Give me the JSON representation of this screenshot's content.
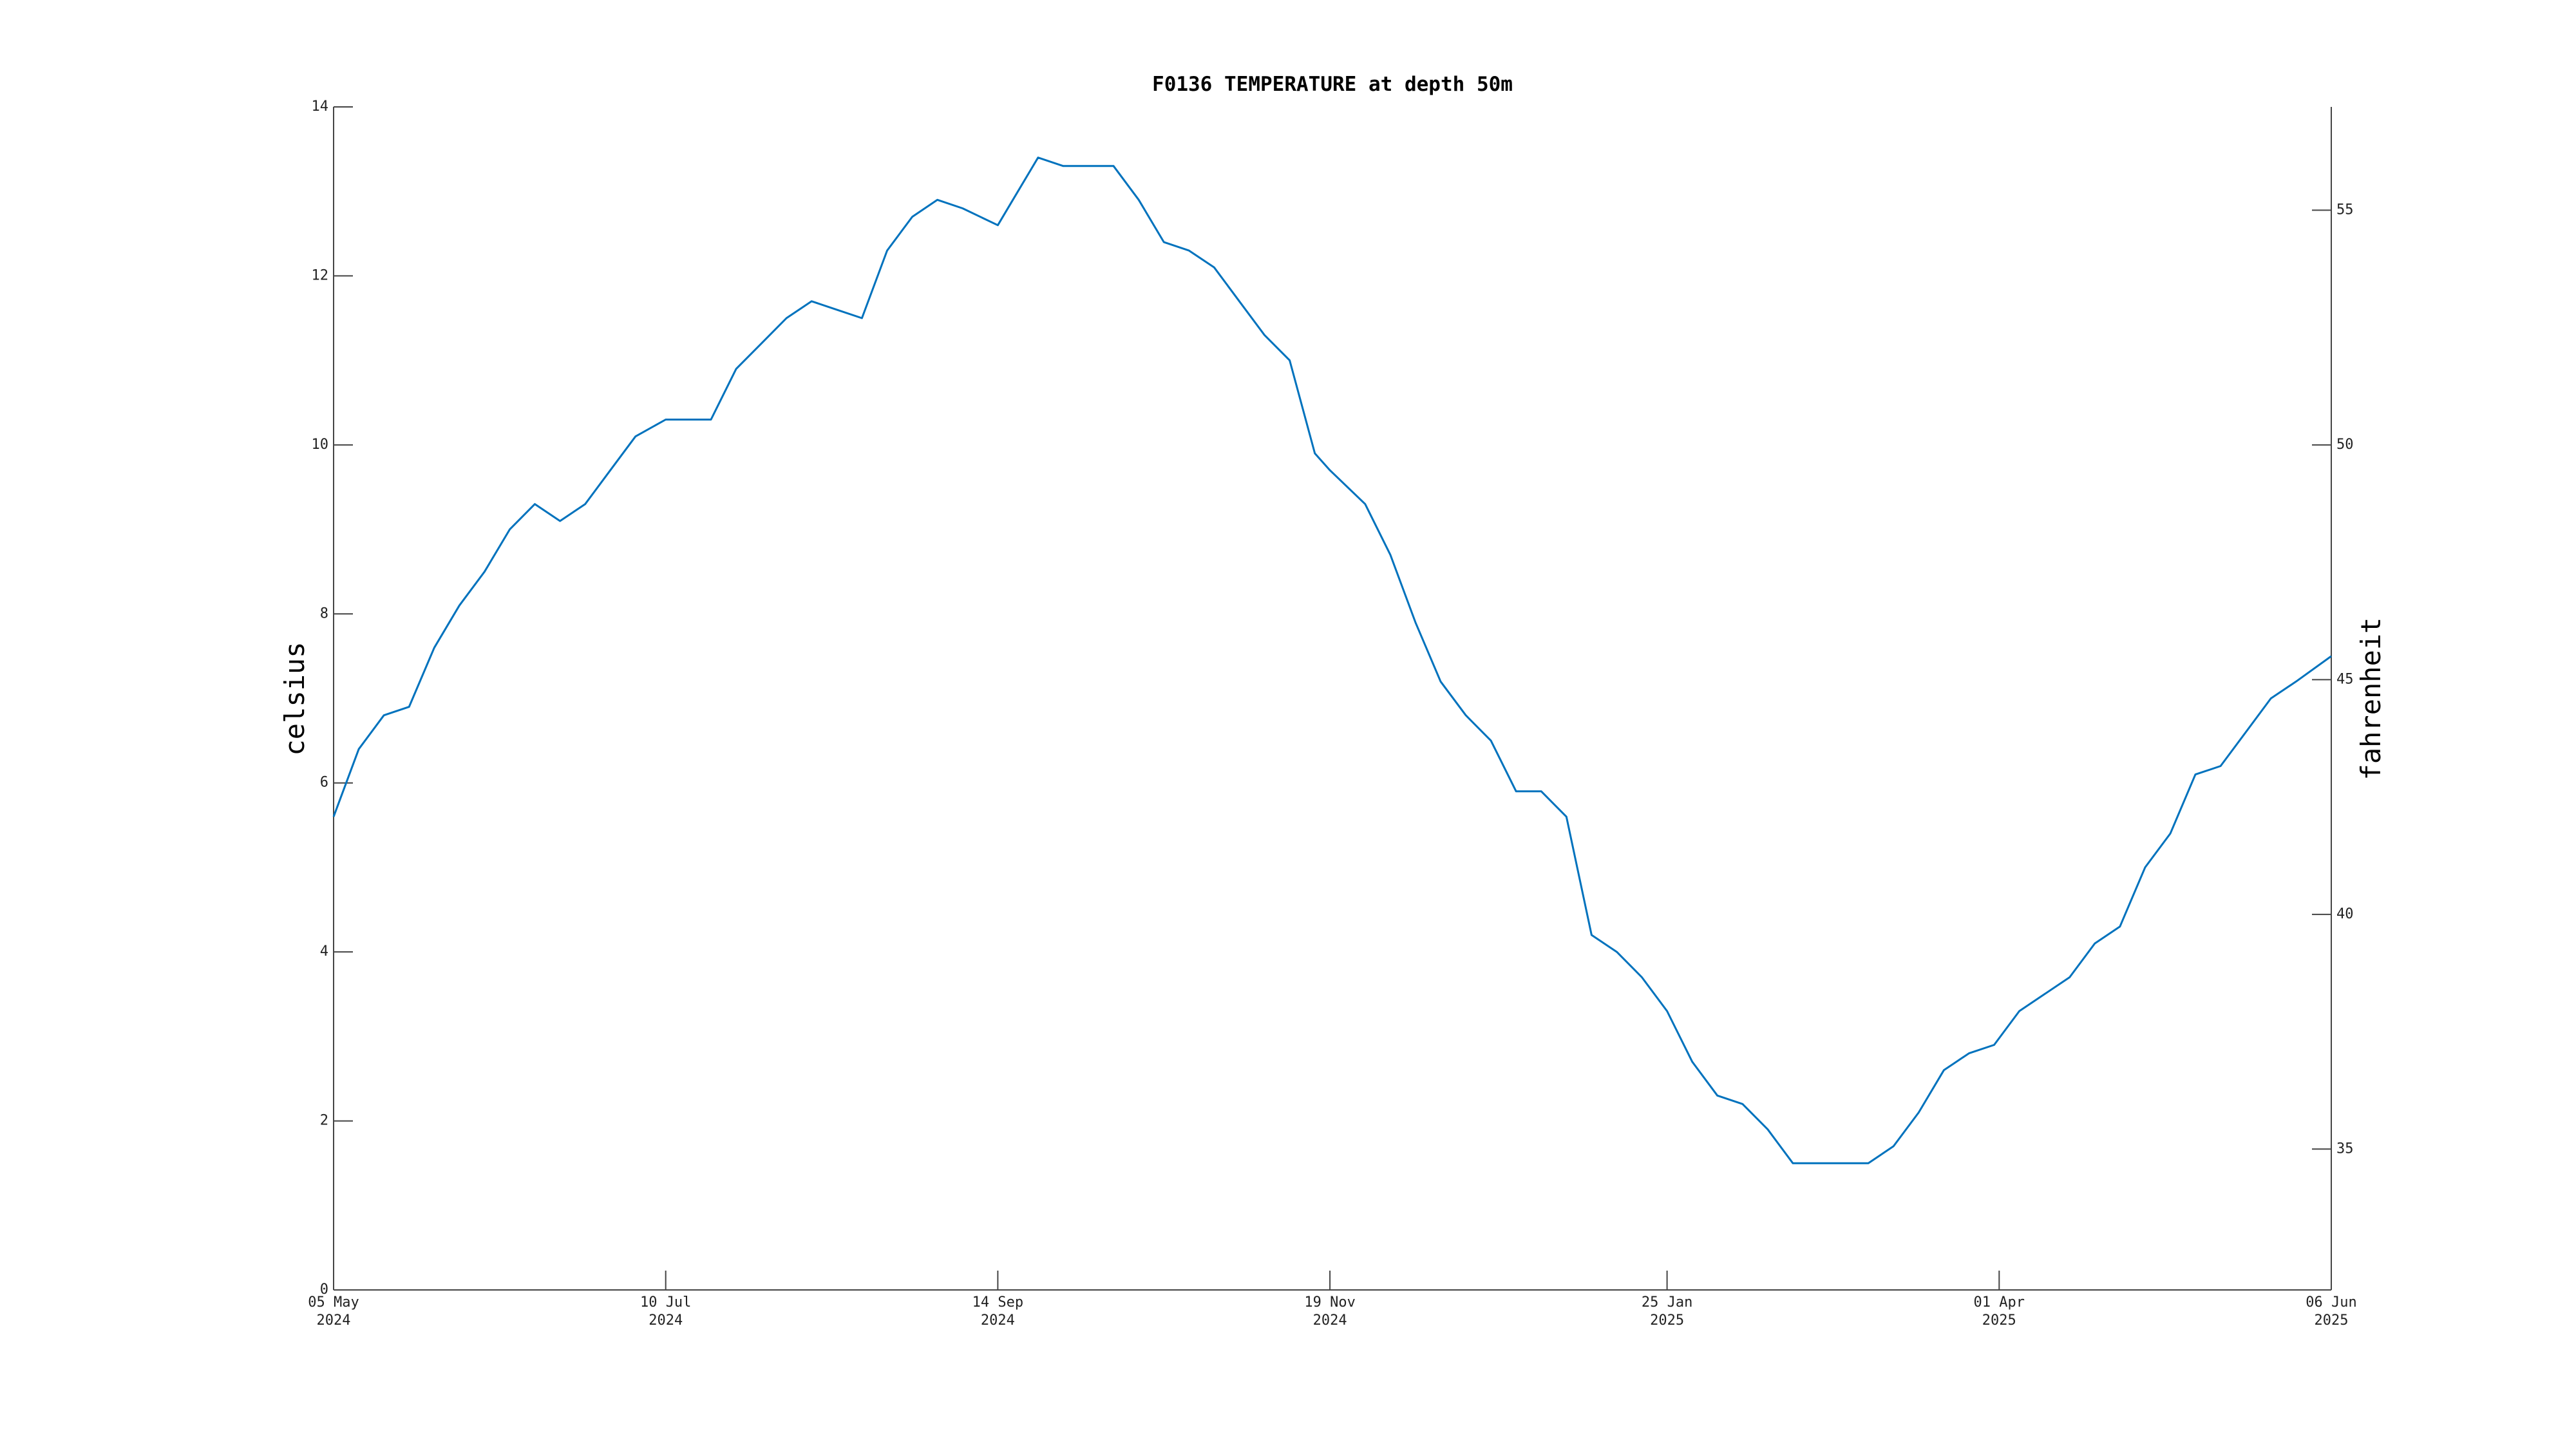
{
  "chart_data": {
    "type": "line",
    "title": "F0136 TEMPERATURE at depth 50m",
    "ylabel": "celsius",
    "y2label": "fahrenheit",
    "color": "#0072bd",
    "x": [
      "2024-05-05",
      "2024-05-10",
      "2024-05-15",
      "2024-05-20",
      "2024-05-25",
      "2024-05-30",
      "2024-06-04",
      "2024-06-09",
      "2024-06-14",
      "2024-06-19",
      "2024-06-24",
      "2024-06-29",
      "2024-07-04",
      "2024-07-10",
      "2024-07-14",
      "2024-07-19",
      "2024-07-24",
      "2024-07-29",
      "2024-08-03",
      "2024-08-08",
      "2024-08-13",
      "2024-08-18",
      "2024-08-23",
      "2024-08-28",
      "2024-09-02",
      "2024-09-07",
      "2024-09-14",
      "2024-09-17",
      "2024-09-22",
      "2024-09-27",
      "2024-10-02",
      "2024-10-07",
      "2024-10-12",
      "2024-10-17",
      "2024-10-22",
      "2024-10-27",
      "2024-11-01",
      "2024-11-06",
      "2024-11-11",
      "2024-11-16",
      "2024-11-19",
      "2024-11-26",
      "2024-12-01",
      "2024-12-06",
      "2024-12-11",
      "2024-12-16",
      "2024-12-21",
      "2024-12-26",
      "2024-12-31",
      "2025-01-05",
      "2025-01-10",
      "2025-01-15",
      "2025-01-20",
      "2025-01-25",
      "2025-01-30",
      "2025-02-04",
      "2025-02-09",
      "2025-02-14",
      "2025-02-19",
      "2025-02-24",
      "2025-03-01",
      "2025-03-06",
      "2025-03-11",
      "2025-03-16",
      "2025-03-21",
      "2025-03-26",
      "2025-03-31",
      "2025-04-05",
      "2025-04-10",
      "2025-04-15",
      "2025-04-20",
      "2025-04-25",
      "2025-04-30",
      "2025-05-05",
      "2025-05-10",
      "2025-05-15",
      "2025-05-20",
      "2025-05-25",
      "2025-05-30",
      "2025-06-06"
    ],
    "values": [
      5.6,
      6.4,
      6.8,
      6.9,
      7.6,
      8.1,
      8.5,
      9.0,
      9.3,
      9.1,
      9.3,
      9.7,
      10.1,
      10.3,
      10.3,
      10.3,
      10.9,
      11.2,
      11.5,
      11.7,
      11.6,
      11.5,
      12.3,
      12.7,
      12.9,
      12.8,
      12.6,
      12.9,
      13.4,
      13.3,
      13.3,
      13.3,
      12.9,
      12.4,
      12.3,
      12.1,
      11.7,
      11.3,
      11.0,
      9.9,
      9.7,
      9.3,
      8.7,
      7.9,
      7.2,
      6.8,
      6.5,
      5.9,
      5.9,
      5.6,
      4.2,
      4.0,
      3.7,
      3.3,
      2.7,
      2.3,
      2.2,
      1.9,
      1.5,
      1.5,
      1.5,
      1.5,
      1.7,
      2.1,
      2.6,
      2.8,
      2.9,
      3.3,
      3.5,
      3.7,
      4.1,
      4.3,
      5.0,
      5.4,
      6.1,
      6.2,
      6.6,
      7.0,
      7.2,
      7.5
    ],
    "xlim": [
      "2024-05-05",
      "2025-06-06"
    ],
    "xticks": [
      {
        "value": "2024-05-05",
        "label": "05 May 2024"
      },
      {
        "value": "2024-07-10",
        "label": "10 Jul 2024"
      },
      {
        "value": "2024-09-14",
        "label": "14 Sep 2024"
      },
      {
        "value": "2024-11-19",
        "label": "19 Nov 2024"
      },
      {
        "value": "2025-01-25",
        "label": "25 Jan 2025"
      },
      {
        "value": "2025-04-01",
        "label": "01 Apr 2025"
      },
      {
        "value": "2025-06-06",
        "label": "06 Jun 2025"
      }
    ],
    "ylim": [
      0,
      14
    ],
    "yticks": [
      0,
      2,
      4,
      6,
      8,
      10,
      12,
      14
    ],
    "y2lim": [
      32,
      57.2
    ],
    "y2ticks": [
      35,
      40,
      45,
      50,
      55
    ]
  }
}
